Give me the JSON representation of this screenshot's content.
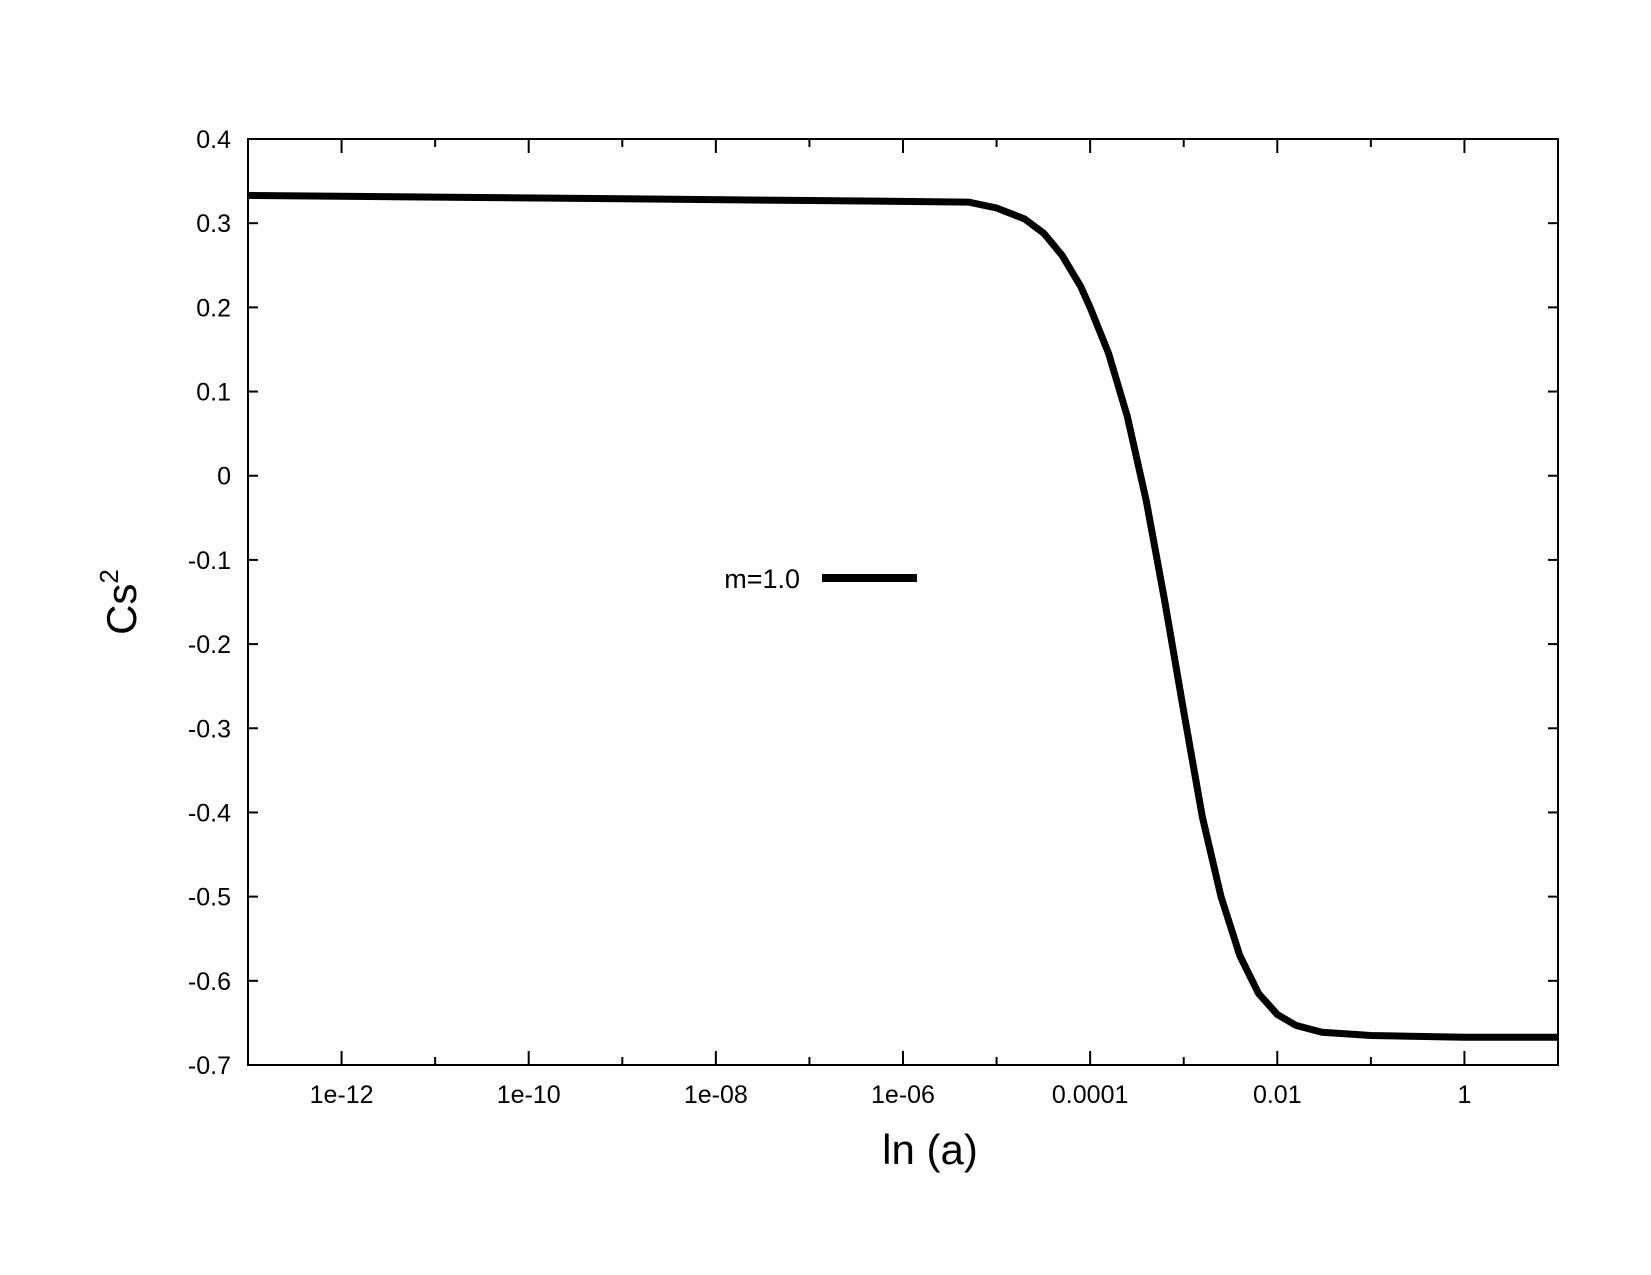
{
  "chart_data": {
    "type": "line",
    "xlabel": "ln (a)",
    "ylabel": "Cs",
    "ylabel_superscript": "2",
    "x_scale": "log",
    "xlim": [
      1e-13,
      10
    ],
    "ylim": [
      -0.7,
      0.4
    ],
    "x_ticks": [
      {
        "value": 1e-12,
        "label": "1e-12"
      },
      {
        "value": 1e-10,
        "label": "1e-10"
      },
      {
        "value": 1e-08,
        "label": "1e-08"
      },
      {
        "value": 1e-06,
        "label": "1e-06"
      },
      {
        "value": 0.0001,
        "label": "0.0001"
      },
      {
        "value": 0.01,
        "label": "0.01"
      },
      {
        "value": 1,
        "label": "1"
      }
    ],
    "y_ticks": [
      {
        "value": 0.4,
        "label": "0.4"
      },
      {
        "value": 0.3,
        "label": "0.3"
      },
      {
        "value": 0.2,
        "label": "0.2"
      },
      {
        "value": 0.1,
        "label": "0.1"
      },
      {
        "value": 0,
        "label": "0"
      },
      {
        "value": -0.1,
        "label": "-0.1"
      },
      {
        "value": -0.2,
        "label": "-0.2"
      },
      {
        "value": -0.3,
        "label": "-0.3"
      },
      {
        "value": -0.4,
        "label": "-0.4"
      },
      {
        "value": -0.5,
        "label": "-0.5"
      },
      {
        "value": -0.6,
        "label": "-0.6"
      },
      {
        "value": -0.7,
        "label": "-0.7"
      }
    ],
    "grid": false,
    "legend_position": "center-left",
    "series": [
      {
        "name": "m=1.0",
        "color": "#000000",
        "points": [
          [
            1e-13,
            0.333
          ],
          [
            1e-11,
            0.331
          ],
          [
            1e-09,
            0.329
          ],
          [
            1e-07,
            0.327
          ],
          [
            5e-06,
            0.325
          ],
          [
            1e-05,
            0.318
          ],
          [
            2e-05,
            0.305
          ],
          [
            3.2e-05,
            0.288
          ],
          [
            5e-05,
            0.262
          ],
          [
            7.9e-05,
            0.225
          ],
          [
            0.0001,
            0.2
          ],
          [
            0.000158,
            0.145
          ],
          [
            0.00025,
            0.07
          ],
          [
            0.000398,
            -0.03
          ],
          [
            0.00063,
            -0.15
          ],
          [
            0.001,
            -0.28
          ],
          [
            0.00158,
            -0.405
          ],
          [
            0.0025,
            -0.5
          ],
          [
            0.00398,
            -0.57
          ],
          [
            0.0063,
            -0.615
          ],
          [
            0.01,
            -0.64
          ],
          [
            0.0158,
            -0.653
          ],
          [
            0.03,
            -0.661
          ],
          [
            0.1,
            -0.665
          ],
          [
            1,
            -0.667
          ],
          [
            10,
            -0.667
          ]
        ]
      }
    ]
  }
}
